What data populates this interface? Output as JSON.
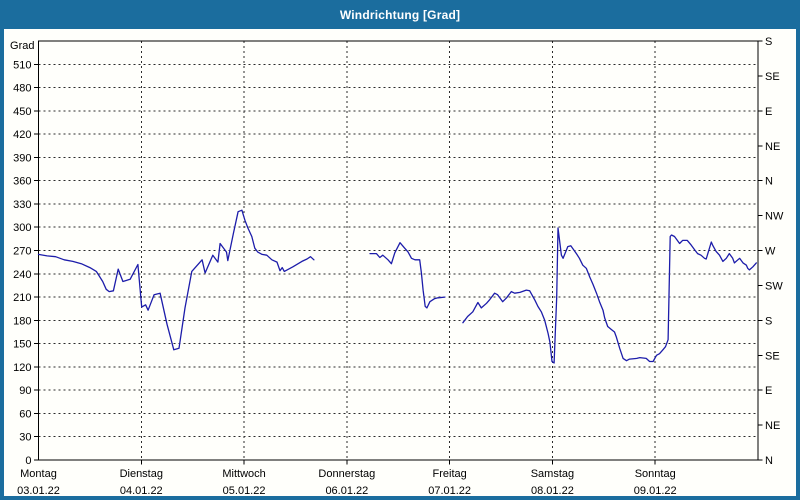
{
  "window": {
    "title": "Windrichtung [Grad]"
  },
  "colors": {
    "titlebar": "#1b6d9e",
    "window_border": "#1b6d9e",
    "line": "#1d1daa",
    "grid": "#2b2b2b",
    "background": "#fffffb",
    "title_text": "#ffffff"
  },
  "chart_data": {
    "type": "line",
    "title": "Windrichtung [Grad]",
    "ylabel_left": "Grad",
    "ylim": [
      0,
      540
    ],
    "grid": true,
    "y_left_ticks": [
      0,
      30,
      60,
      90,
      120,
      150,
      180,
      210,
      240,
      270,
      300,
      330,
      360,
      390,
      420,
      450,
      480,
      510
    ],
    "y_right_labels": [
      {
        "deg": 540,
        "label": "S"
      },
      {
        "deg": 495,
        "label": "SE"
      },
      {
        "deg": 450,
        "label": "E"
      },
      {
        "deg": 405,
        "label": "NE"
      },
      {
        "deg": 360,
        "label": "N"
      },
      {
        "deg": 315,
        "label": "NW"
      },
      {
        "deg": 270,
        "label": "W"
      },
      {
        "deg": 225,
        "label": "SW"
      },
      {
        "deg": 180,
        "label": "S"
      },
      {
        "deg": 135,
        "label": "SE"
      },
      {
        "deg": 90,
        "label": "E"
      },
      {
        "deg": 45,
        "label": "NE"
      },
      {
        "deg": 0,
        "label": "N"
      }
    ],
    "x_days": [
      {
        "name": "Montag",
        "date": "03.01.22"
      },
      {
        "name": "Dienstag",
        "date": "04.01.22"
      },
      {
        "name": "Mittwoch",
        "date": "05.01.22"
      },
      {
        "name": "Donnerstag",
        "date": "06.01.22"
      },
      {
        "name": "Freitag",
        "date": "07.01.22"
      },
      {
        "name": "Samstag",
        "date": "08.01.22"
      },
      {
        "name": "Sonntag",
        "date": "09.01.22"
      }
    ],
    "x_unit": "hours_since_monday_00",
    "segments": [
      [
        [
          0,
          265
        ],
        [
          2,
          263
        ],
        [
          4,
          262
        ],
        [
          6,
          258
        ],
        [
          8,
          256
        ],
        [
          10,
          253
        ],
        [
          12,
          248
        ],
        [
          13.5,
          243
        ],
        [
          15,
          230
        ],
        [
          15.8,
          220
        ],
        [
          16.5,
          217
        ],
        [
          17.5,
          218
        ],
        [
          18.6,
          246
        ],
        [
          19.7,
          230
        ],
        [
          21.4,
          233
        ],
        [
          23.2,
          252
        ],
        [
          24.1,
          197
        ],
        [
          25,
          200
        ],
        [
          25.6,
          193
        ],
        [
          27,
          213
        ],
        [
          28.4,
          215
        ],
        [
          30,
          175
        ],
        [
          31.6,
          142
        ],
        [
          32.8,
          144
        ],
        [
          34.2,
          196
        ],
        [
          35.8,
          243
        ],
        [
          38.2,
          258
        ],
        [
          38.9,
          241
        ],
        [
          40.7,
          264
        ],
        [
          41.9,
          255
        ],
        [
          42.4,
          279
        ],
        [
          43.9,
          268
        ],
        [
          44.2,
          257
        ],
        [
          45.5,
          292
        ],
        [
          46.6,
          320
        ],
        [
          47.5,
          322
        ],
        [
          48.2,
          309
        ],
        [
          48.9,
          299
        ],
        [
          49.8,
          288
        ],
        [
          50.5,
          273
        ],
        [
          51.2,
          268
        ],
        [
          52.2,
          265
        ],
        [
          53.3,
          264
        ],
        [
          54.5,
          258
        ],
        [
          55.7,
          255
        ],
        [
          56.4,
          244
        ],
        [
          56.9,
          248
        ],
        [
          57.4,
          243
        ],
        [
          59.4,
          249
        ],
        [
          61.5,
          256
        ],
        [
          62.7,
          259
        ],
        [
          63.5,
          262
        ],
        [
          64.3,
          258
        ]
      ],
      [
        [
          77.4,
          266
        ],
        [
          78.9,
          266
        ],
        [
          79.7,
          261
        ],
        [
          80.4,
          264
        ],
        [
          81.6,
          258
        ],
        [
          82.4,
          253
        ],
        [
          83.2,
          267
        ],
        [
          84.4,
          280
        ],
        [
          85.5,
          273
        ],
        [
          86.3,
          268
        ],
        [
          87.1,
          260
        ],
        [
          87.9,
          258
        ],
        [
          89,
          258
        ],
        [
          89.4,
          241
        ],
        [
          89.8,
          219
        ],
        [
          90.3,
          198
        ],
        [
          90.7,
          196
        ],
        [
          91.4,
          204
        ],
        [
          92.5,
          208
        ],
        [
          93.3,
          209
        ],
        [
          94.9,
          210
        ]
      ],
      [
        [
          99.1,
          177
        ],
        [
          100.2,
          185
        ],
        [
          101.4,
          191
        ],
        [
          102.3,
          200
        ],
        [
          102.6,
          203
        ],
        [
          103.4,
          196
        ],
        [
          104.6,
          202
        ],
        [
          105.4,
          207
        ],
        [
          106.5,
          215
        ],
        [
          107.2,
          213
        ],
        [
          108.4,
          204
        ],
        [
          109.3,
          209
        ],
        [
          110.4,
          217
        ],
        [
          111.2,
          215
        ],
        [
          112.4,
          216
        ],
        [
          113.9,
          219
        ],
        [
          114.7,
          218
        ],
        [
          115.9,
          206
        ],
        [
          116.6,
          198
        ],
        [
          117.4,
          191
        ],
        [
          118.2,
          180
        ],
        [
          119,
          163
        ],
        [
          119.4,
          152
        ],
        [
          119.9,
          127
        ],
        [
          120.4,
          125
        ],
        [
          121,
          210
        ],
        [
          121.3,
          299
        ],
        [
          122.1,
          264
        ],
        [
          122.5,
          260
        ],
        [
          123.6,
          275
        ],
        [
          124.3,
          276
        ],
        [
          125.6,
          266
        ],
        [
          126.3,
          260
        ],
        [
          127.1,
          251
        ],
        [
          127.9,
          247
        ],
        [
          128.7,
          236
        ],
        [
          129.5,
          226
        ],
        [
          130.3,
          215
        ],
        [
          131,
          204
        ],
        [
          131.8,
          193
        ],
        [
          132.2,
          183
        ],
        [
          132.9,
          172
        ],
        [
          133.8,
          168
        ],
        [
          134.5,
          165
        ],
        [
          134.9,
          159
        ],
        [
          135.7,
          144
        ],
        [
          136.5,
          131
        ],
        [
          137.3,
          128
        ],
        [
          138,
          130
        ],
        [
          139.7,
          131
        ],
        [
          140.4,
          132
        ],
        [
          141.9,
          131
        ],
        [
          142.7,
          127
        ],
        [
          143.5,
          127
        ],
        [
          144.3,
          135
        ],
        [
          145,
          137
        ],
        [
          145.8,
          142
        ],
        [
          146.4,
          146
        ],
        [
          147,
          155
        ],
        [
          147.5,
          288
        ],
        [
          147.8,
          290
        ],
        [
          148.5,
          288
        ],
        [
          149.7,
          279
        ],
        [
          150.4,
          283
        ],
        [
          151.5,
          283
        ],
        [
          152.4,
          277
        ],
        [
          153.2,
          271
        ],
        [
          153.9,
          266
        ],
        [
          154.7,
          264
        ],
        [
          155.5,
          260
        ],
        [
          155.9,
          259
        ],
        [
          157.1,
          281
        ],
        [
          157.4,
          277
        ],
        [
          158.2,
          269
        ],
        [
          159,
          264
        ],
        [
          159.8,
          256
        ],
        [
          160.6,
          260
        ],
        [
          161.3,
          266
        ],
        [
          162.1,
          260
        ],
        [
          162.5,
          254
        ],
        [
          163.3,
          258
        ],
        [
          163.7,
          260
        ],
        [
          164.5,
          254
        ],
        [
          165.3,
          251
        ],
        [
          165.6,
          247
        ],
        [
          166,
          245
        ],
        [
          166.8,
          249
        ],
        [
          167.6,
          254
        ]
      ]
    ]
  }
}
